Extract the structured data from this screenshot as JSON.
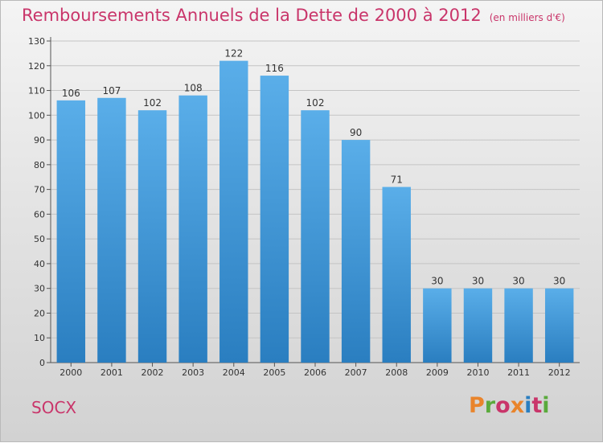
{
  "chart_data": {
    "type": "bar",
    "title": "Remboursements Annuels de la Dette de 2000 à 2012",
    "subtitle": "(en milliers d'€)",
    "xlabel": "",
    "ylabel": "",
    "categories": [
      "2000",
      "2001",
      "2002",
      "2003",
      "2004",
      "2005",
      "2006",
      "2007",
      "2008",
      "2009",
      "2010",
      "2011",
      "2012"
    ],
    "values": [
      106,
      107,
      102,
      108,
      122,
      116,
      102,
      90,
      71,
      30,
      30,
      30,
      30
    ],
    "ylim": [
      0,
      130
    ],
    "yticks": [
      0,
      10,
      20,
      30,
      40,
      50,
      60,
      70,
      80,
      90,
      100,
      110,
      120,
      130
    ],
    "grid": true,
    "legend": "none",
    "colors": {
      "bar_top": "#5aaee9",
      "bar_bottom": "#2a7ec0",
      "title": "#c9356a"
    }
  },
  "footer": {
    "commune": "SOCX",
    "brand": "Proxiti",
    "brand_colors": [
      "#e9842b",
      "#5aaa3c",
      "#c9356a",
      "#e9842b",
      "#2a7ec0",
      "#c9356a",
      "#5aaa3c"
    ]
  }
}
